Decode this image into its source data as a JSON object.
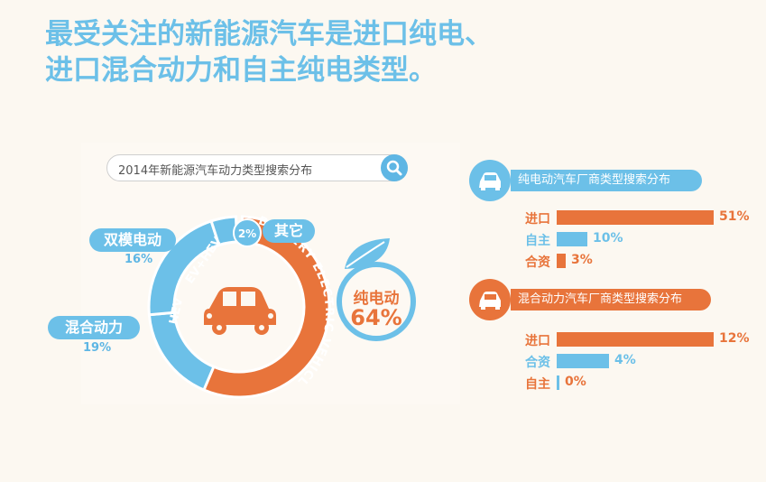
{
  "title": {
    "line1": "最受关注的新能源汽车是进口纯电、",
    "line2": "进口混合动力和自主纯电类型。"
  },
  "search": {
    "text": "2014年新能源汽车动力类型搜索分布"
  },
  "donut": {
    "segments": [
      {
        "tag": "BATTERY ELECTRIC VEHICLE",
        "label": "纯电动",
        "pct": "64%",
        "value": 64,
        "color": "#e8743b"
      },
      {
        "tag": "HEV",
        "label": "混合动力",
        "pct": "19%",
        "value": 19,
        "color": "#6cc0e8"
      },
      {
        "tag": "EV+HEV",
        "label": "双模电动",
        "pct": "16%",
        "value": 16,
        "color": "#6cc0e8"
      },
      {
        "label": "其它",
        "pct": "2%",
        "value": 2,
        "color": "#6cc0e8"
      }
    ]
  },
  "colors": {
    "orange": "#e8743b",
    "blue": "#6cc0e8"
  },
  "icons": {
    "search": "search-icon",
    "car": "car-icon",
    "leaf": "leaf-icon"
  },
  "chart_data": [
    {
      "type": "pie",
      "title": "2014年新能源汽车动力类型搜索分布",
      "categories": [
        "纯电动",
        "混合动力",
        "双模电动",
        "其它"
      ],
      "values": [
        64,
        19,
        16,
        2
      ]
    },
    {
      "type": "bar",
      "title": "纯电动汽车厂商类型搜索分布",
      "categories": [
        "进口",
        "自主",
        "合资"
      ],
      "values": [
        51,
        10,
        3
      ],
      "labels": [
        "51%",
        "10%",
        "3%"
      ]
    },
    {
      "type": "bar",
      "title": "混合动力汽车厂商类型搜索分布",
      "categories": [
        "进口",
        "合资",
        "自主"
      ],
      "values": [
        12,
        4,
        0
      ],
      "labels": [
        "12%",
        "4%",
        "0%"
      ]
    }
  ]
}
